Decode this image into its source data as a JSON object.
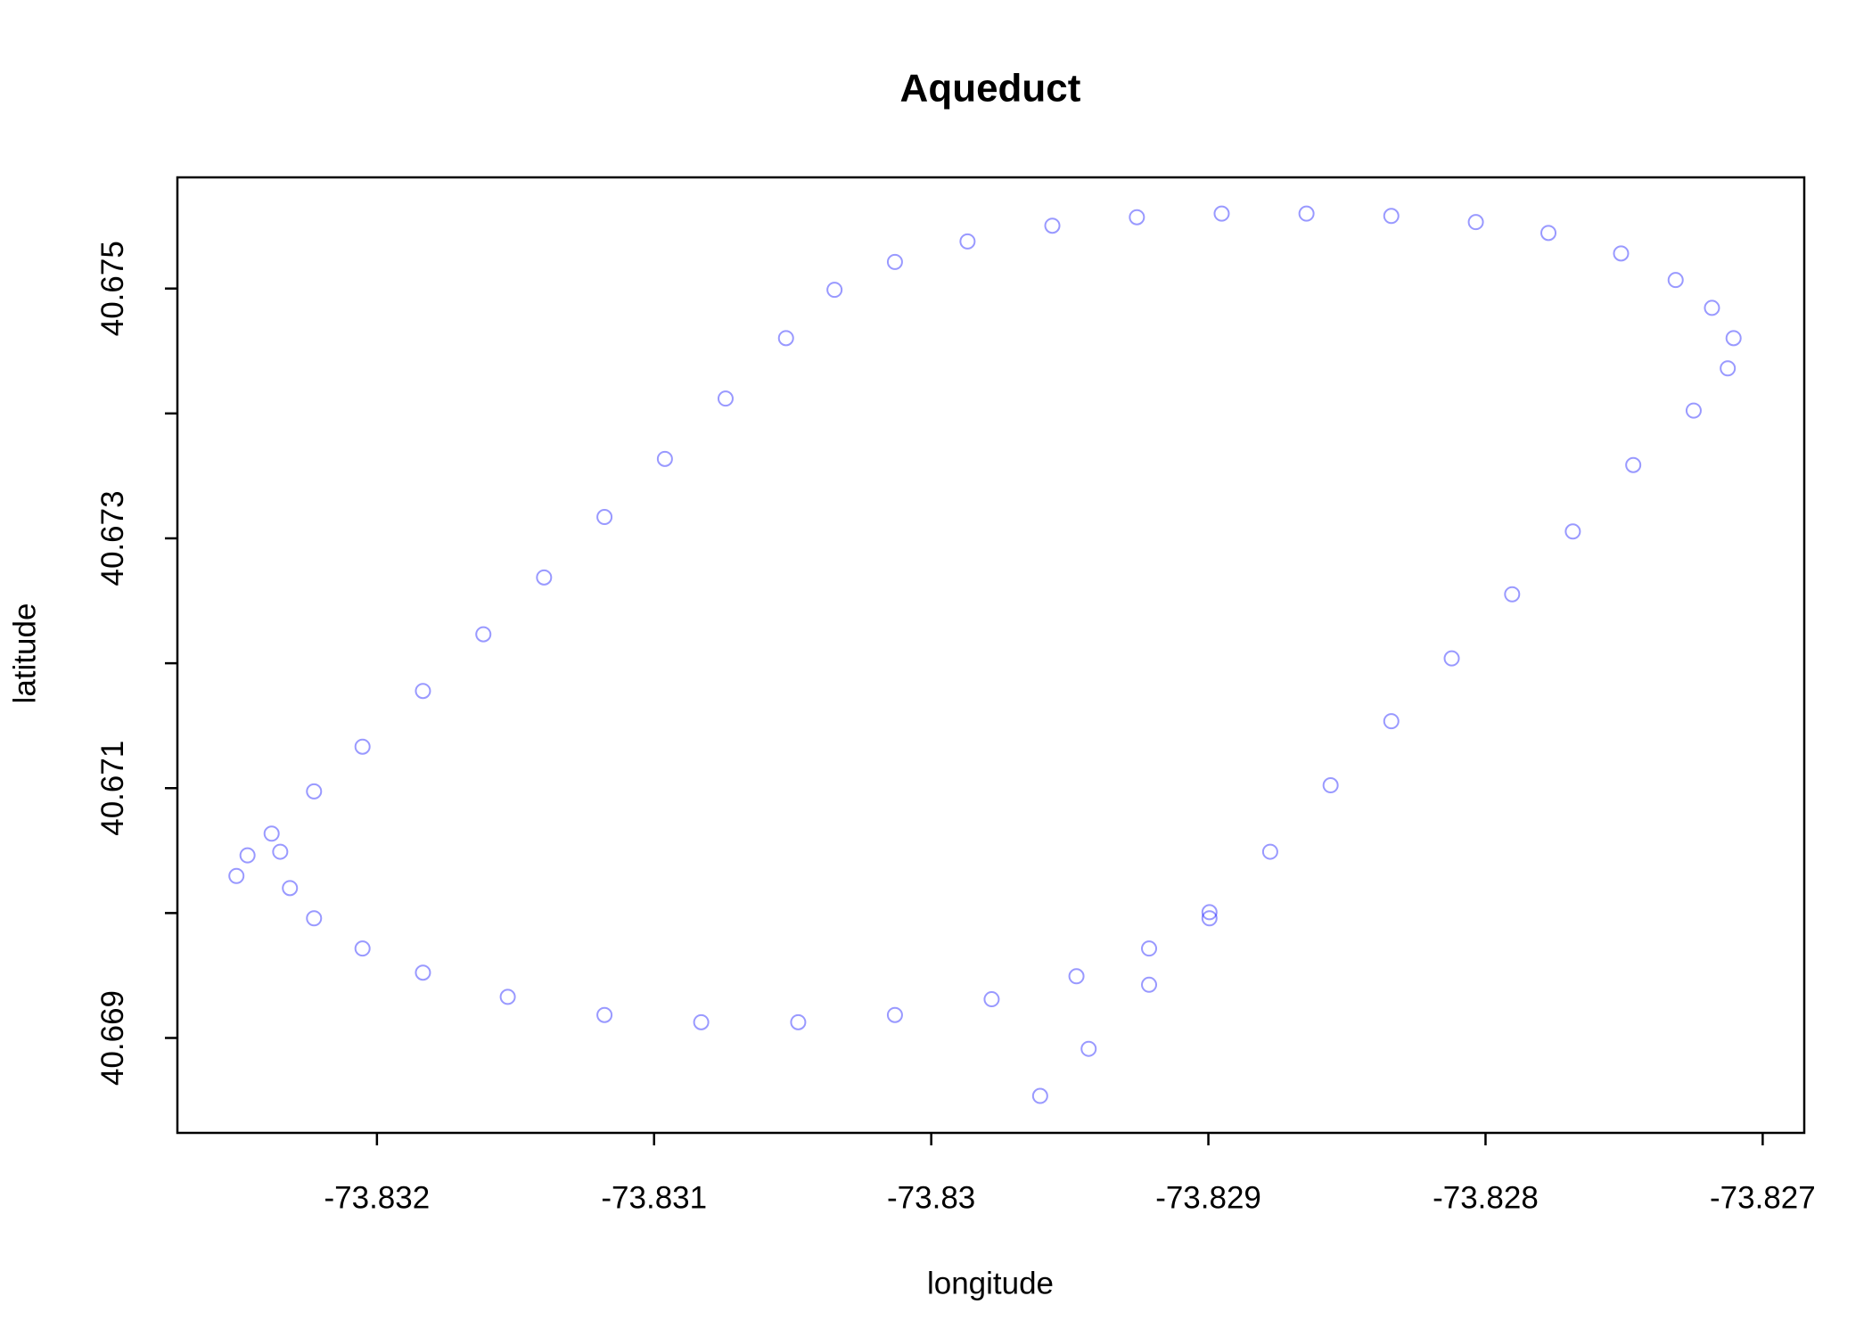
{
  "chart_data": {
    "type": "scatter",
    "title": "Aqueduct",
    "xlabel": "longitude",
    "ylabel": "latitude",
    "color": "#0000ff",
    "xlim": [
      -73.83272,
      -73.82685
    ],
    "ylim": [
      40.66824,
      40.67589
    ],
    "xticks": [
      -73.832,
      -73.831,
      -73.83,
      -73.829,
      -73.828,
      -73.827
    ],
    "yticks": [
      40.669,
      40.671,
      40.673,
      40.675
    ],
    "yminor_ticks": [
      40.67,
      40.672,
      40.674
    ],
    "x": [
      -73.829607,
      -73.829432,
      -73.829214,
      -73.828996,
      -73.828777,
      -73.828559,
      -73.82834,
      -73.828122,
      -73.827904,
      -73.827685,
      -73.827467,
      -73.827249,
      -73.827126,
      -73.827105,
      -73.827183,
      -73.827314,
      -73.827511,
      -73.827773,
      -73.828035,
      -73.82834,
      -73.828646,
      -73.828952,
      -73.829258,
      -73.829563,
      -73.829869,
      -73.830131,
      -73.830349,
      -73.830524,
      -73.830742,
      -73.830961,
      -73.831179,
      -73.831397,
      -73.831616,
      -73.831834,
      -73.832052,
      -73.832227,
      -73.83238,
      -73.832467,
      -73.832507,
      -73.832349,
      -73.832314,
      -73.832227,
      -73.832052,
      -73.831834,
      -73.831528,
      -73.831179,
      -73.83083,
      -73.83048,
      -73.830131,
      -73.829782,
      -73.829476,
      -73.829214,
      -73.828996
    ],
    "y": [
      40.668536,
      40.668913,
      40.669426,
      40.669958,
      40.670491,
      40.671023,
      40.671536,
      40.672039,
      40.672552,
      40.673055,
      40.673587,
      40.674023,
      40.674361,
      40.674603,
      40.674845,
      40.675068,
      40.675281,
      40.675445,
      40.675532,
      40.675581,
      40.6756,
      40.6756,
      40.675571,
      40.675503,
      40.675377,
      40.675213,
      40.67499,
      40.674603,
      40.674119,
      40.673636,
      40.673171,
      40.672687,
      40.672232,
      40.671778,
      40.671332,
      40.670974,
      40.670636,
      40.670462,
      40.670297,
      40.670491,
      40.6702,
      40.669958,
      40.669716,
      40.669523,
      40.669329,
      40.669184,
      40.669126,
      40.669126,
      40.669184,
      40.66931,
      40.669494,
      40.669716,
      40.670007
    ]
  }
}
